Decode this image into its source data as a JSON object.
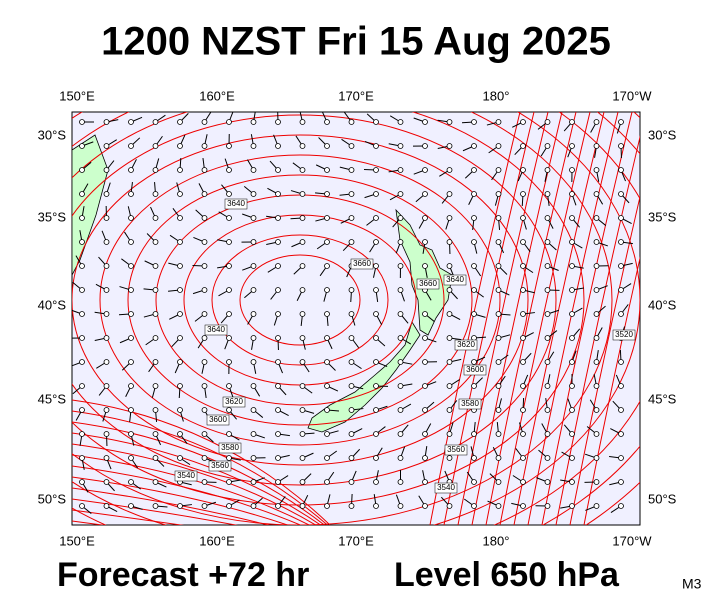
{
  "header": {
    "title": "1200 NZST Fri 15 Aug 2025"
  },
  "footer": {
    "forecast": "Forecast +72 hr",
    "level": "Level 650 hPa",
    "model": "M3"
  },
  "map": {
    "lon_labels": [
      "150°E",
      "160°E",
      "170°E",
      "180°",
      "170°W"
    ],
    "lat_labels": [
      "30°S",
      "35°S",
      "40°S",
      "45°S",
      "50°S"
    ],
    "contour_labels": [
      "3640",
      "3660",
      "3660",
      "3640",
      "3620",
      "3600",
      "3580",
      "3560",
      "3540",
      "3640",
      "3620",
      "3600",
      "3580",
      "3560",
      "3540",
      "3520"
    ]
  }
}
